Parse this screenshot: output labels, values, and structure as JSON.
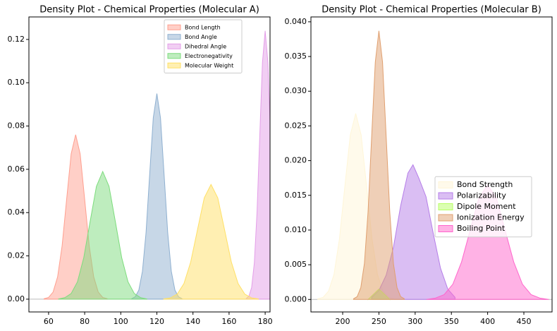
{
  "chart_data": [
    {
      "type": "density",
      "title": "Density Plot - Chemical Properties (Molecular A)",
      "xlim": [
        49.1,
        182.7
      ],
      "ylim": [
        -0.0059,
        0.1304
      ],
      "xticks": [
        60,
        80,
        100,
        120,
        140,
        160,
        180
      ],
      "yticks": [
        {
          "value": 0,
          "label": "0.00"
        },
        {
          "value": 0.02,
          "label": "0.02"
        },
        {
          "value": 0.04,
          "label": "0.04"
        },
        {
          "value": 0.06,
          "label": "0.06"
        },
        {
          "value": 0.08,
          "label": "0.08"
        },
        {
          "value": 0.1,
          "label": "0.10"
        },
        {
          "value": 0.12,
          "label": "0.12"
        }
      ],
      "legend": "upper right",
      "series": [
        {
          "name": "Bond Length",
          "color": "#ff9f8f",
          "x": [
            57.5,
            60,
            62.5,
            65,
            67.5,
            70,
            72.5,
            75,
            77.5,
            80,
            82.5,
            85,
            87.5,
            90,
            92.5
          ],
          "values": [
            0.0002,
            0.0008,
            0.0033,
            0.0103,
            0.0247,
            0.0461,
            0.0671,
            0.076,
            0.0671,
            0.0461,
            0.0247,
            0.0103,
            0.0033,
            0.0008,
            0.0002
          ]
        },
        {
          "name": "Bond Angle",
          "color": "#8fb0d0",
          "x": [
            106,
            108,
            110,
            112,
            114,
            116,
            118,
            120,
            122,
            124,
            126,
            128,
            130,
            132,
            134
          ],
          "values": [
            0.0002,
            0.0011,
            0.0042,
            0.0129,
            0.0308,
            0.0576,
            0.0838,
            0.095,
            0.0838,
            0.0576,
            0.0308,
            0.0129,
            0.0042,
            0.0011,
            0.0002
          ]
        },
        {
          "name": "Dihedral Angle",
          "color": "#e39ee8",
          "x": [
            169.5,
            171,
            172.5,
            174,
            175.5,
            177,
            178.5,
            180,
            181.5,
            183
          ],
          "values": [
            0.0003,
            0.0014,
            0.0054,
            0.0168,
            0.0403,
            0.0752,
            0.1094,
            0.124,
            0.1094,
            0.0752
          ]
        },
        {
          "name": "Electronegativity",
          "color": "#7ddc7d",
          "x": [
            65.5,
            69,
            72.5,
            76,
            79.5,
            83,
            86.5,
            90,
            93.5,
            97,
            100.5,
            104,
            107.5,
            111,
            114.5
          ],
          "values": [
            0.0001,
            0.0007,
            0.0026,
            0.008,
            0.0192,
            0.0358,
            0.0521,
            0.059,
            0.0521,
            0.0358,
            0.0192,
            0.008,
            0.0026,
            0.0007,
            0.0001
          ]
        },
        {
          "name": "Molecular Weight",
          "color": "#ffe066",
          "x": [
            123.75,
            127.5,
            131.25,
            135,
            138.75,
            142.5,
            146.25,
            150,
            153.75,
            157.5,
            161.25,
            165,
            168.75,
            172.5,
            176.25
          ],
          "values": [
            0.0001,
            0.0006,
            0.0023,
            0.0072,
            0.0172,
            0.0321,
            0.0468,
            0.053,
            0.0468,
            0.0321,
            0.0172,
            0.0072,
            0.0023,
            0.0006,
            0.0001
          ]
        }
      ]
    },
    {
      "type": "density",
      "title": "Density Plot - Chemical Properties (Molecular B)",
      "xlim": [
        156.2,
        488.9
      ],
      "ylim": [
        -0.0018,
        0.0407
      ],
      "xticks": [
        200,
        250,
        300,
        350,
        400,
        450
      ],
      "yticks": [
        {
          "value": 0,
          "label": "0.000"
        },
        {
          "value": 0.005,
          "label": "0.005"
        },
        {
          "value": 0.01,
          "label": "0.010"
        },
        {
          "value": 0.015,
          "label": "0.015"
        },
        {
          "value": 0.02,
          "label": "0.020"
        },
        {
          "value": 0.025,
          "label": "0.025"
        },
        {
          "value": 0.03,
          "label": "0.030"
        },
        {
          "value": 0.035,
          "label": "0.035"
        },
        {
          "value": 0.04,
          "label": "0.040"
        }
      ],
      "legend": "center right",
      "series": [
        {
          "name": "Bond Strength",
          "color": "#fff6d8",
          "x": [
            165.5,
            173,
            180.5,
            188,
            195.5,
            203,
            210.5,
            218,
            225.5,
            233,
            240.5,
            248,
            255.5,
            263,
            270.5
          ],
          "values": [
            0.0001,
            0.0003,
            0.0012,
            0.0036,
            0.0087,
            0.0163,
            0.0237,
            0.0268,
            0.0237,
            0.0163,
            0.0087,
            0.0036,
            0.0012,
            0.0003,
            0.0001
          ]
        },
        {
          "name": "Polarizability",
          "color": "#b57ee8",
          "x": [
            240,
            250,
            260,
            270,
            280,
            290,
            297,
            305,
            315,
            325,
            335,
            345,
            355
          ],
          "values": [
            0.0003,
            0.0013,
            0.0035,
            0.0075,
            0.0135,
            0.0182,
            0.0194,
            0.0175,
            0.0148,
            0.0095,
            0.0045,
            0.0015,
            0.0003
          ]
        },
        {
          "name": "Dipole Moment",
          "color": "#b8ff66",
          "x": [
            235,
            245,
            250,
            255,
            265
          ],
          "values": [
            0,
            0.001,
            0.0015,
            0.001,
            0
          ]
        },
        {
          "name": "Ionization Energy",
          "color": "#e0a070",
          "x": [
            215,
            220,
            225,
            230,
            235,
            240,
            245,
            250,
            255,
            260,
            265,
            270,
            275,
            280,
            285
          ],
          "values": [
            0.0001,
            0.0004,
            0.0017,
            0.0052,
            0.0126,
            0.0235,
            0.0342,
            0.0387,
            0.0342,
            0.0235,
            0.0126,
            0.0052,
            0.0017,
            0.0004,
            0.0001
          ]
        },
        {
          "name": "Boiling Point",
          "color": "#ff66cc",
          "x": [
            316,
            328,
            340,
            352,
            364,
            376,
            388,
            400,
            412,
            424,
            436,
            448,
            460,
            472,
            484
          ],
          "values": [
            0,
            0.0002,
            0.0007,
            0.0022,
            0.0054,
            0.01,
            0.0146,
            0.0165,
            0.0146,
            0.01,
            0.0054,
            0.0022,
            0.0007,
            0.0002,
            0
          ]
        }
      ]
    }
  ]
}
